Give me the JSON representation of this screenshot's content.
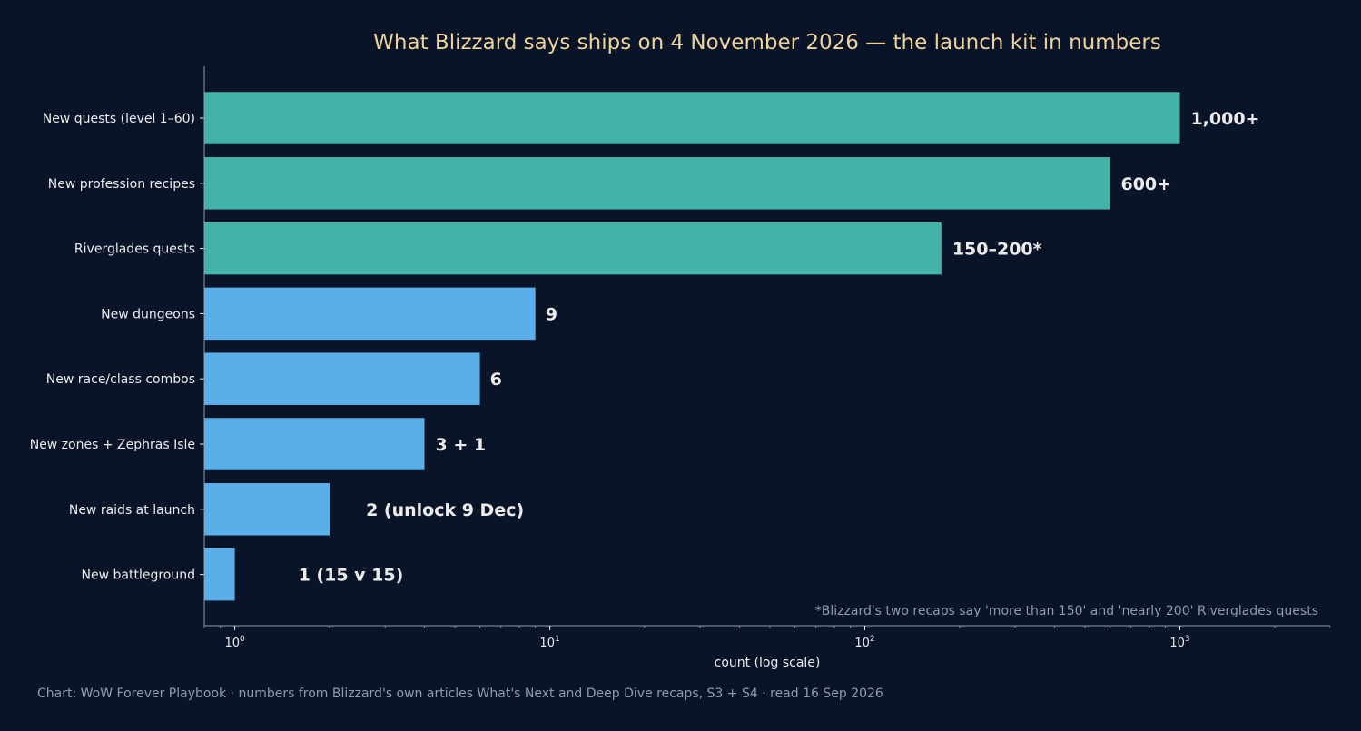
{
  "chart_data": {
    "type": "bar",
    "orientation": "horizontal",
    "title": "What Blizzard says ships on 4 November 2026 — the launch kit in numbers",
    "xlabel": "count (log scale)",
    "ylabel": "",
    "x_scale": "log",
    "xlim": [
      0.8,
      3000
    ],
    "x_ticks": [
      {
        "value": 1,
        "base": "10",
        "exp": "0"
      },
      {
        "value": 10,
        "base": "10",
        "exp": "1"
      },
      {
        "value": 100,
        "base": "10",
        "exp": "2"
      },
      {
        "value": 1000,
        "base": "10",
        "exp": "3"
      }
    ],
    "grid": false,
    "categories": [
      "New quests (level 1–60)",
      "New profession recipes",
      "Riverglades quests",
      "New dungeons",
      "New race/class combos",
      "New zones + Zephras Isle",
      "New raids at launch",
      "New battleground"
    ],
    "values": [
      1000,
      600,
      175,
      9,
      6,
      4,
      2,
      1
    ],
    "data_labels": [
      "1,000+",
      "600+",
      "150–200*",
      "9",
      "6",
      "3 + 1",
      "2 (unlock 9 Dec)",
      "1 (15 v 15)"
    ],
    "bar_colors": [
      "#43b3a9",
      "#43b3a9",
      "#43b3a9",
      "#5aafe8",
      "#5aafe8",
      "#5aafe8",
      "#5aafe8",
      "#5aafe8"
    ],
    "annotation": "*Blizzard's two recaps say 'more than 150' and 'nearly 200' Riverglades quests",
    "caption": "Chart: WoW Forever Playbook · numbers from Blizzard's own articles What's Next and Deep Dive recaps, S3 + S4 · read 16 Sep 2026"
  },
  "colors": {
    "background": "#0a1428",
    "title": "#edd39a",
    "text": "#ececec",
    "muted": "#8f9bad",
    "axis": "#8f9bad"
  }
}
